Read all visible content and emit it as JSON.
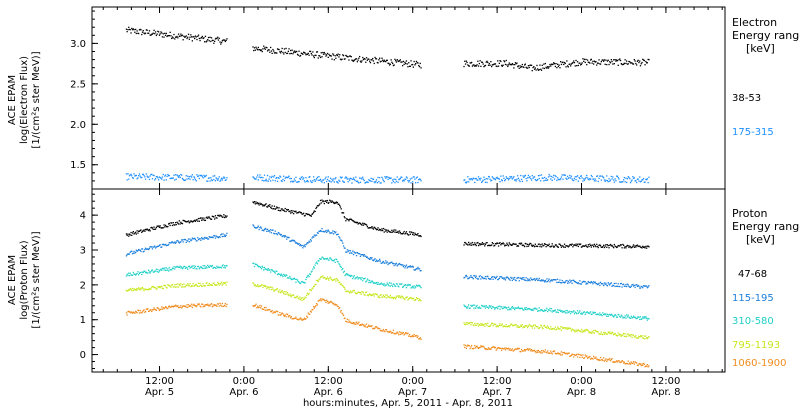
{
  "chart_data": [
    {
      "type": "scatter",
      "panel": "electron",
      "ylabel_lines": [
        "ACE EPAM",
        "log(Electron Flux)",
        "[1/(cm²s ster MeV)]"
      ],
      "legend_title_lines": [
        "Electron",
        "Energy range",
        "[keV]"
      ],
      "yticks": [
        1.5,
        2.0,
        2.5,
        3.0
      ],
      "ytick_labels": [
        "1.5",
        "2.0",
        "2.5",
        "3.0"
      ],
      "ylim": [
        1.2,
        3.45
      ],
      "series": [
        {
          "name": "38-53",
          "color": "#000000",
          "segments": [
            {
              "x": [
                5.3,
                5.6,
                5.9
              ],
              "y": [
                3.17,
                3.1,
                3.03
              ]
            },
            {
              "x": [
                6.05,
                6.5,
                7.05
              ],
              "y": [
                2.95,
                2.85,
                2.74
              ]
            },
            {
              "x": [
                7.3,
                7.55,
                7.7,
                8.0,
                8.4
              ],
              "y": [
                2.76,
                2.76,
                2.7,
                2.78,
                2.77
              ]
            }
          ]
        },
        {
          "name": "175-315",
          "color": "#1e90ff",
          "segments": [
            {
              "x": [
                5.3,
                5.6,
                5.9
              ],
              "y": [
                1.36,
                1.35,
                1.34
              ]
            },
            {
              "x": [
                6.05,
                6.5,
                7.05
              ],
              "y": [
                1.35,
                1.32,
                1.32
              ]
            },
            {
              "x": [
                7.3,
                7.8,
                8.4
              ],
              "y": [
                1.32,
                1.35,
                1.32
              ]
            }
          ]
        }
      ]
    },
    {
      "type": "scatter",
      "panel": "proton",
      "ylabel_lines": [
        "ACE EPAM",
        "log(Proton Flux)",
        "[1/(cm²s ster MeV)]"
      ],
      "legend_title_lines": [
        "Proton",
        "Energy range",
        "[keV]"
      ],
      "yticks": [
        0,
        1,
        2,
        3,
        4
      ],
      "ytick_labels": [
        "0",
        "1",
        "2",
        "3",
        "4"
      ],
      "ylim": [
        -0.5,
        4.75
      ],
      "series": [
        {
          "name": "47-68",
          "color": "#000000",
          "segments": [
            {
              "x": [
                5.3,
                5.6,
                5.9
              ],
              "y": [
                3.45,
                3.8,
                4.0
              ]
            },
            {
              "x": [
                6.05,
                6.2,
                6.4,
                6.45,
                6.55,
                6.6,
                6.8,
                7.05
              ],
              "y": [
                4.4,
                4.2,
                4.0,
                4.4,
                4.4,
                3.9,
                3.6,
                3.45
              ]
            },
            {
              "x": [
                7.3,
                7.8,
                8.4
              ],
              "y": [
                3.2,
                3.15,
                3.12
              ]
            }
          ]
        },
        {
          "name": "115-195",
          "color": "#1c7fdc",
          "segments": [
            {
              "x": [
                5.3,
                5.6,
                5.9
              ],
              "y": [
                2.9,
                3.25,
                3.45
              ]
            },
            {
              "x": [
                6.05,
                6.2,
                6.35,
                6.45,
                6.55,
                6.6,
                6.8,
                7.05
              ],
              "y": [
                3.7,
                3.5,
                3.1,
                3.6,
                3.5,
                3.0,
                2.7,
                2.45
              ]
            },
            {
              "x": [
                7.3,
                7.8,
                8.4
              ],
              "y": [
                2.25,
                2.15,
                1.95
              ]
            }
          ]
        },
        {
          "name": "310-580",
          "color": "#20d0c8",
          "segments": [
            {
              "x": [
                5.3,
                5.6,
                5.9
              ],
              "y": [
                2.3,
                2.5,
                2.55
              ]
            },
            {
              "x": [
                6.05,
                6.2,
                6.35,
                6.45,
                6.55,
                6.6,
                6.8,
                7.05
              ],
              "y": [
                2.6,
                2.35,
                2.05,
                2.8,
                2.7,
                2.3,
                2.05,
                1.95
              ]
            },
            {
              "x": [
                7.3,
                7.8,
                8.4
              ],
              "y": [
                1.4,
                1.3,
                1.05
              ]
            }
          ]
        },
        {
          "name": "795-1193",
          "color": "#c8e61e",
          "segments": [
            {
              "x": [
                5.3,
                5.6,
                5.9
              ],
              "y": [
                1.85,
                2.0,
                2.05
              ]
            },
            {
              "x": [
                6.05,
                6.2,
                6.35,
                6.45,
                6.55,
                6.6,
                6.8,
                7.05
              ],
              "y": [
                2.05,
                1.85,
                1.6,
                2.25,
                2.15,
                1.85,
                1.7,
                1.6
              ]
            },
            {
              "x": [
                7.3,
                7.8,
                8.4
              ],
              "y": [
                0.9,
                0.8,
                0.5
              ]
            }
          ]
        },
        {
          "name": "1060-1900",
          "color": "#f08c1e",
          "segments": [
            {
              "x": [
                5.3,
                5.6,
                5.9
              ],
              "y": [
                1.2,
                1.4,
                1.45
              ]
            },
            {
              "x": [
                6.05,
                6.2,
                6.35,
                6.45,
                6.55,
                6.6,
                6.8,
                7.05
              ],
              "y": [
                1.45,
                1.2,
                1.0,
                1.6,
                1.45,
                1.0,
                0.75,
                0.5
              ]
            },
            {
              "x": [
                7.3,
                7.8,
                8.4
              ],
              "y": [
                0.25,
                0.1,
                -0.3
              ]
            }
          ]
        }
      ]
    }
  ],
  "xaxis": {
    "xlim": [
      5.1,
      8.85
    ],
    "ticks": [
      5.5,
      6.0,
      6.5,
      7.0,
      7.5,
      8.0,
      8.5
    ],
    "tick_time_labels": [
      "12:00",
      "0:00",
      "12:00",
      "0:00",
      "12:00",
      "0:00",
      "12:00"
    ],
    "tick_date_labels": [
      "Apr. 5",
      "Apr. 6",
      "Apr. 6",
      "Apr. 7",
      "Apr. 7",
      "Apr. 8",
      "Apr. 8"
    ],
    "xlabel": "hours:minutes, Apr.  5, 2011 - Apr.  8, 2011"
  }
}
